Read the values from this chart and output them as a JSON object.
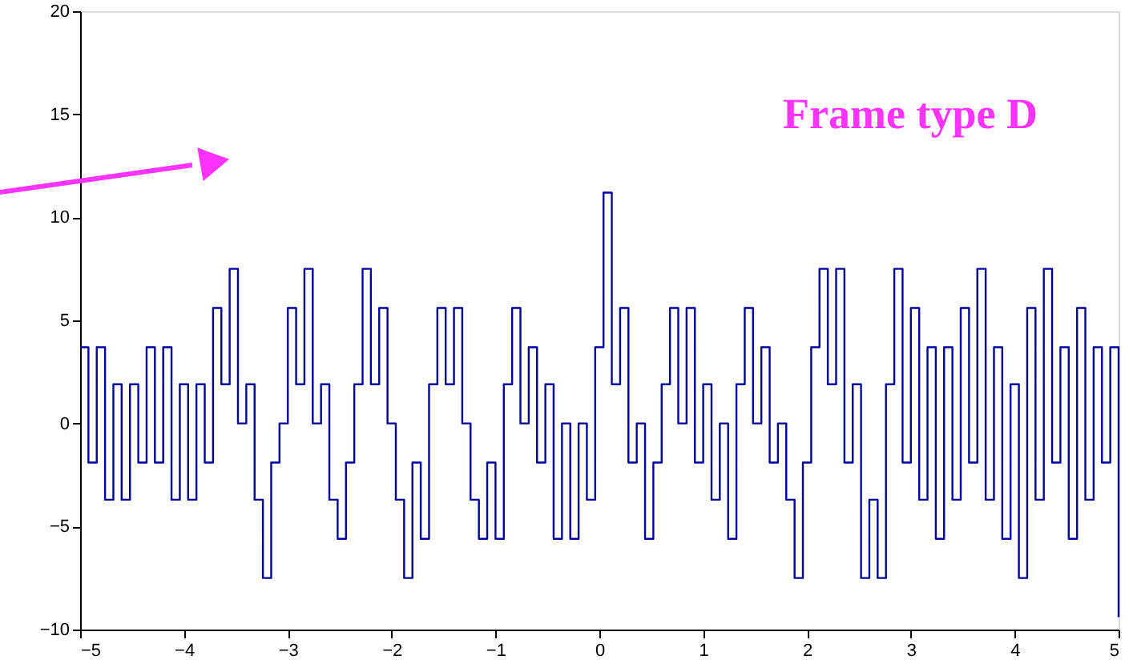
{
  "chart_data": {
    "type": "step",
    "x": [
      -5.0,
      -4.92,
      -4.84,
      -4.76,
      -4.68,
      -4.6,
      -4.52,
      -4.44,
      -4.36,
      -4.28,
      -4.2,
      -4.12,
      -4.04,
      -3.96,
      -3.88,
      -3.8,
      -3.72,
      -3.64,
      -3.56,
      -3.48,
      -3.4,
      -3.32,
      -3.24,
      -3.16,
      -3.08,
      -3.0,
      -2.92,
      -2.84,
      -2.76,
      -2.68,
      -2.6,
      -2.52,
      -2.44,
      -2.36,
      -2.28,
      -2.2,
      -2.12,
      -2.04,
      -1.96,
      -1.88,
      -1.8,
      -1.72,
      -1.64,
      -1.56,
      -1.48,
      -1.4,
      -1.32,
      -1.24,
      -1.16,
      -1.08,
      -1.0,
      -0.92,
      -0.84,
      -0.76,
      -0.68,
      -0.6,
      -0.52,
      -0.44,
      -0.36,
      -0.28,
      -0.2,
      -0.12,
      -0.04,
      0.04,
      0.12,
      0.2,
      0.28,
      0.36,
      0.44,
      0.52,
      0.6,
      0.68,
      0.76,
      0.84,
      0.92,
      1.0,
      1.08,
      1.16,
      1.24,
      1.32,
      1.4,
      1.48,
      1.56,
      1.64,
      1.72,
      1.8,
      1.88,
      1.96,
      2.04,
      2.12,
      2.2,
      2.28,
      2.36,
      2.44,
      2.52,
      2.6,
      2.68,
      2.76,
      2.84,
      2.92,
      3.0,
      3.08,
      3.16,
      3.24,
      3.32,
      3.4,
      3.48,
      3.56,
      3.64,
      3.72,
      3.8,
      3.88,
      3.96,
      4.04,
      4.12,
      4.2,
      4.28,
      4.36,
      4.44,
      4.52,
      4.6,
      4.68,
      4.76,
      4.84,
      4.92,
      5.0
    ],
    "series": [
      {
        "color": "#00009c",
        "values": [
          3.7,
          -1.9,
          3.7,
          -3.7,
          1.9,
          -3.7,
          1.9,
          -1.9,
          3.7,
          -1.9,
          3.7,
          -3.7,
          1.9,
          -3.7,
          1.9,
          -1.9,
          5.6,
          1.9,
          7.5,
          0,
          1.9,
          -3.7,
          -7.5,
          -1.9,
          0,
          5.6,
          1.9,
          7.5,
          0,
          1.9,
          -3.7,
          -5.6,
          -1.9,
          1.9,
          7.5,
          1.9,
          5.6,
          0,
          -3.7,
          -7.5,
          -1.9,
          -5.6,
          1.9,
          5.6,
          1.9,
          5.6,
          0,
          -3.7,
          -5.6,
          -1.9,
          -5.6,
          1.9,
          5.6,
          0,
          3.7,
          -1.9,
          1.9,
          -5.6,
          0,
          -5.6,
          0,
          -3.7,
          3.7,
          11.2,
          1.9,
          5.6,
          -1.9,
          0,
          -5.6,
          -1.9,
          1.9,
          5.6,
          0,
          5.6,
          -1.9,
          1.9,
          -3.7,
          0,
          -5.6,
          1.9,
          5.6,
          0,
          3.7,
          -1.9,
          0,
          -3.7,
          -7.5,
          -1.9,
          3.7,
          7.5,
          1.9,
          7.5,
          -1.9,
          1.9,
          -7.5,
          -3.7,
          -7.5,
          1.9,
          7.5,
          -1.9,
          5.6,
          -3.7,
          3.7,
          -5.6,
          3.7,
          -3.7,
          5.6,
          -1.9,
          7.5,
          -3.7,
          3.7,
          -5.6,
          1.9,
          -7.5,
          5.6,
          -3.7,
          7.5,
          -1.9,
          3.7,
          -5.6,
          5.6,
          -3.7,
          3.7,
          -1.9,
          3.7,
          -9.4
        ]
      }
    ],
    "xlim": [
      -5,
      5
    ],
    "xticks": [
      -5,
      -4,
      -3,
      -2,
      -1,
      0,
      1,
      2,
      3,
      4,
      5
    ],
    "ylim": [
      -10,
      20
    ],
    "yticks": [
      -10,
      -5,
      0,
      5,
      10,
      15,
      20
    ],
    "annotations": [
      "Frame type D"
    ],
    "grid": false
  }
}
